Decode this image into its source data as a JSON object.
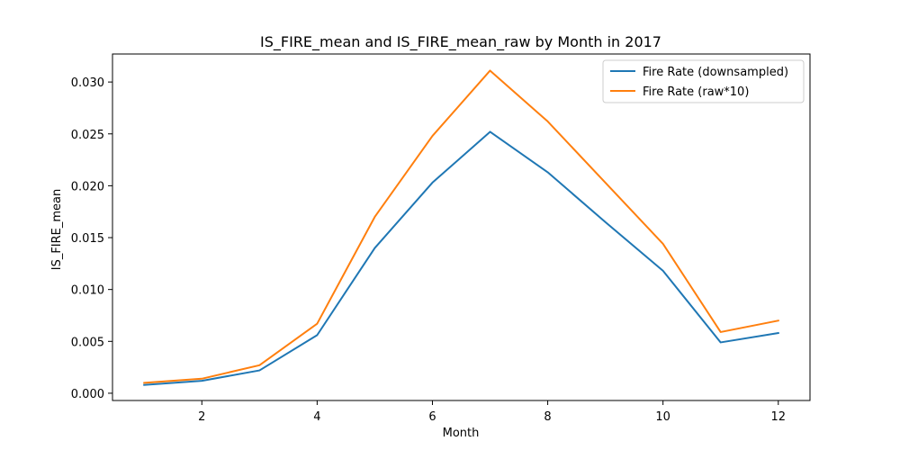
{
  "chart_data": {
    "type": "line",
    "title": "IS_FIRE_mean and IS_FIRE_mean_raw by Month in 2017",
    "xlabel": "Month",
    "ylabel": "IS_FIRE_mean",
    "x": [
      1,
      2,
      3,
      4,
      5,
      6,
      7,
      8,
      9,
      10,
      11,
      12
    ],
    "xlim": [
      0.45,
      12.55
    ],
    "ylim": [
      -0.0007,
      0.0327
    ],
    "xticks": [
      2,
      4,
      6,
      8,
      10,
      12
    ],
    "xtick_labels": [
      "2",
      "4",
      "6",
      "8",
      "10",
      "12"
    ],
    "yticks": [
      0.0,
      0.005,
      0.01,
      0.015,
      0.02,
      0.025,
      0.03
    ],
    "ytick_labels": [
      "0.000",
      "0.005",
      "0.010",
      "0.015",
      "0.020",
      "0.025",
      "0.030"
    ],
    "grid": false,
    "legend_position": "top-right",
    "series": [
      {
        "name": "Fire Rate (downsampled)",
        "color": "#1f77b4",
        "values": [
          0.0008,
          0.0012,
          0.0022,
          0.0056,
          0.014,
          0.0203,
          0.0252,
          0.0213,
          0.0165,
          0.0118,
          0.0049,
          0.0058
        ]
      },
      {
        "name": "Fire Rate (raw*10)",
        "color": "#ff7f0e",
        "values": [
          0.001,
          0.0014,
          0.0027,
          0.0067,
          0.017,
          0.0248,
          0.0311,
          0.0262,
          0.0203,
          0.0144,
          0.0059,
          0.007
        ]
      }
    ]
  }
}
